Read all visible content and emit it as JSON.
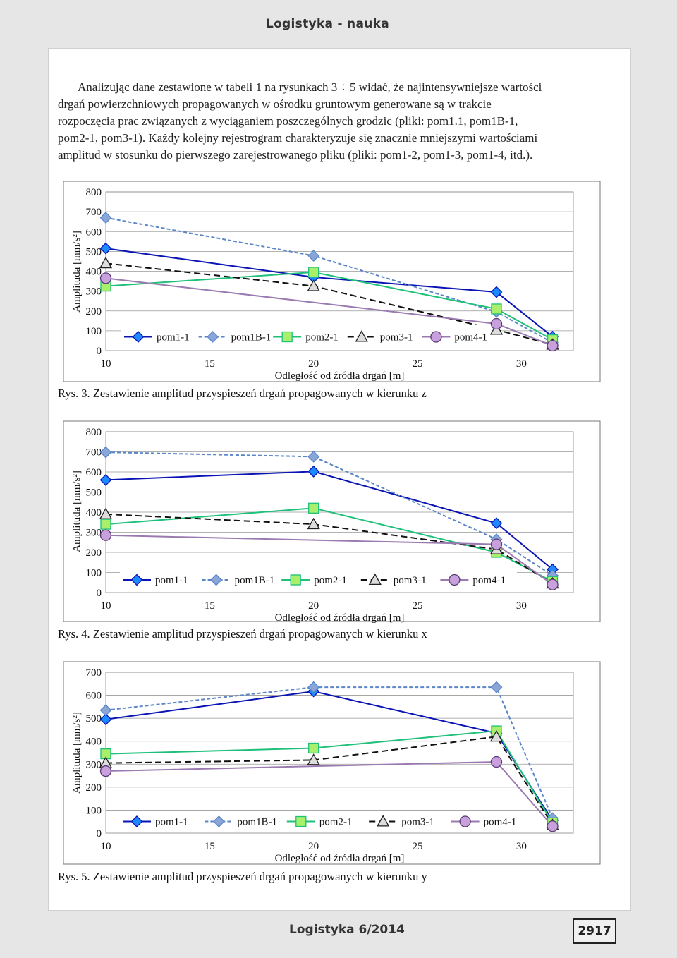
{
  "header": {
    "title": "Logistyka - nauka"
  },
  "body": {
    "paragraph": [
      "Analizując dane zestawione w tabeli 1 na rysunkach 3 ÷ 5 widać, że najintensywniejsze wartości",
      "drgań powierzchniowych propagowanych w ośrodku gruntowym generowane są w trakcie",
      "rozpoczęcia prac związanych z wyciąganiem poszczególnych grodzic (pliki: pom1.1, pom1B-1,",
      "pom2-1, pom3-1). Każdy kolejny rejestrogram charakteryzuje się znacznie mniejszymi wartościami",
      "amplitud w stosunku do pierwszego zarejestrowanego pliku (pliki: pom1-2, pom1-3, pom1-4, itd.)."
    ]
  },
  "colors": {
    "pom1-1": "#0a14b4",
    "pom1B-1": "#5a86c8",
    "pom2-1": "#1ec07a",
    "pom3-1": "#111111",
    "pom4-1": "#9a7ab0"
  },
  "chart_data": [
    {
      "type": "line",
      "caption": "Rys. 3. Zestawienie amplitud przyspieszeń drgań propagowanych w kierunku z",
      "xlabel": "Odległość od źródła drgań [m]",
      "ylabel": "Amplituda [mm/s²]",
      "xlim": [
        10,
        32.5
      ],
      "ylim": [
        0,
        800
      ],
      "xticks": [
        "10",
        "15",
        "20",
        "25",
        "30"
      ],
      "yticks": [
        "0",
        "100",
        "200",
        "300",
        "400",
        "500",
        "600",
        "700",
        "800"
      ],
      "grid": true,
      "legend_position": "bottom-center",
      "series": [
        {
          "name": "pom1-1",
          "marker": "diamond",
          "dash": "solid",
          "x": [
            10,
            20,
            28.8,
            31.5
          ],
          "y": [
            515,
            370,
            295,
            70
          ]
        },
        {
          "name": "pom1B-1",
          "marker": "diamond",
          "dash": "dashed",
          "x": [
            10,
            20,
            28.8,
            31.5
          ],
          "y": [
            670,
            478,
            195,
            40
          ]
        },
        {
          "name": "pom2-1",
          "marker": "square",
          "dash": "solid",
          "x": [
            10,
            20,
            28.8,
            31.5
          ],
          "y": [
            325,
            395,
            210,
            55
          ]
        },
        {
          "name": "pom3-1",
          "marker": "triangle",
          "dash": "longdash",
          "x": [
            10,
            20,
            28.8,
            31.5
          ],
          "y": [
            440,
            325,
            105,
            30
          ]
        },
        {
          "name": "pom4-1",
          "marker": "circle",
          "dash": "solid",
          "x": [
            10,
            28.8,
            31.5
          ],
          "y": [
            365,
            135,
            25
          ]
        }
      ]
    },
    {
      "type": "line",
      "caption": "Rys. 4. Zestawienie amplitud przyspieszeń drgań propagowanych w kierunku x",
      "xlabel": "Odległość od źródła drgań [m]",
      "ylabel": "Amplituda [mm/s²]",
      "xlim": [
        10,
        32.5
      ],
      "ylim": [
        0,
        800
      ],
      "xticks": [
        "10",
        "15",
        "20",
        "25",
        "30"
      ],
      "yticks": [
        "0",
        "100",
        "200",
        "300",
        "400",
        "500",
        "600",
        "700",
        "800"
      ],
      "grid": true,
      "legend_position": "bottom-center",
      "series": [
        {
          "name": "pom1-1",
          "marker": "diamond",
          "dash": "solid",
          "x": [
            10,
            20,
            28.8,
            31.5
          ],
          "y": [
            560,
            602,
            345,
            115
          ]
        },
        {
          "name": "pom1B-1",
          "marker": "diamond",
          "dash": "dashed",
          "x": [
            10,
            20,
            28.8,
            31.5
          ],
          "y": [
            698,
            676,
            265,
            85
          ]
        },
        {
          "name": "pom2-1",
          "marker": "square",
          "dash": "solid",
          "x": [
            10,
            20,
            28.8,
            31.5
          ],
          "y": [
            340,
            420,
            200,
            55
          ]
        },
        {
          "name": "pom3-1",
          "marker": "triangle",
          "dash": "longdash",
          "x": [
            10,
            20,
            28.8,
            31.5
          ],
          "y": [
            390,
            340,
            215,
            45
          ]
        },
        {
          "name": "pom4-1",
          "marker": "circle",
          "dash": "solid",
          "x": [
            10,
            28.8,
            31.5
          ],
          "y": [
            285,
            240,
            40
          ]
        }
      ]
    },
    {
      "type": "line",
      "caption": "Rys. 5. Zestawienie amplitud przyspieszeń drgań propagowanych w kierunku y",
      "xlabel": "Odległość od źródła drgań [m]",
      "ylabel": "Amplituda [mm/s²]",
      "xlim": [
        10,
        32.5
      ],
      "ylim": [
        0,
        700
      ],
      "xticks": [
        "10",
        "15",
        "20",
        "25",
        "30"
      ],
      "yticks": [
        "0",
        "100",
        "200",
        "300",
        "400",
        "500",
        "600",
        "700"
      ],
      "grid": true,
      "legend_position": "bottom-center",
      "series": [
        {
          "name": "pom1-1",
          "marker": "diamond",
          "dash": "solid",
          "x": [
            10,
            20,
            28.8,
            31.5
          ],
          "y": [
            495,
            617,
            435,
            55
          ]
        },
        {
          "name": "pom1B-1",
          "marker": "diamond",
          "dash": "dashed",
          "x": [
            10,
            20,
            28.8,
            31.5
          ],
          "y": [
            535,
            635,
            635,
            65
          ]
        },
        {
          "name": "pom2-1",
          "marker": "square",
          "dash": "solid",
          "x": [
            10,
            20,
            28.8,
            31.5
          ],
          "y": [
            345,
            370,
            445,
            45
          ]
        },
        {
          "name": "pom3-1",
          "marker": "triangle",
          "dash": "longdash",
          "x": [
            10,
            20,
            28.8,
            31.5
          ],
          "y": [
            305,
            318,
            420,
            35
          ]
        },
        {
          "name": "pom4-1",
          "marker": "circle",
          "dash": "solid",
          "x": [
            10,
            28.8,
            31.5
          ],
          "y": [
            270,
            310,
            30
          ]
        }
      ]
    }
  ],
  "footer": {
    "journal": "Logistyka 6/2014",
    "page_number": "2917"
  }
}
